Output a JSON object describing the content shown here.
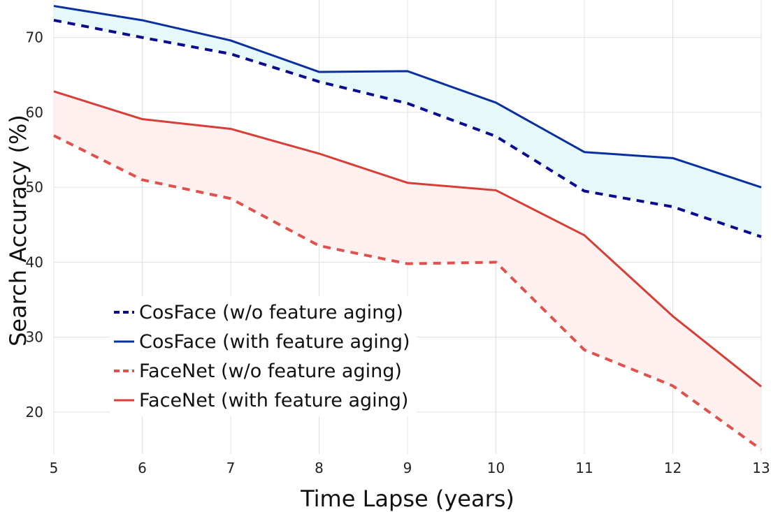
{
  "chart_data": {
    "type": "line",
    "title": "",
    "xlabel": "Time Lapse (years)",
    "ylabel": "Search Accuracy (%)",
    "x": [
      5,
      6,
      7,
      8,
      9,
      10,
      11,
      12,
      13
    ],
    "xlim": [
      5,
      13
    ],
    "ylim": [
      14.4,
      75
    ],
    "x_ticks": [
      "5",
      "6",
      "7",
      "8",
      "9",
      "10",
      "11",
      "12",
      "13"
    ],
    "y_ticks": [
      "20",
      "30",
      "40",
      "50",
      "60",
      "70"
    ],
    "grid": true,
    "legend_position": "lower-left",
    "series": [
      {
        "name": "CosFace (w/o feature aging)",
        "color": "#0b0b8f",
        "dash": "dashed",
        "values": [
          72.3,
          70.0,
          67.8,
          64.1,
          61.2,
          56.8,
          49.5,
          47.4,
          43.4
        ]
      },
      {
        "name": "CosFace (with feature aging)",
        "color": "#0a2fa0",
        "dash": "solid",
        "values": [
          74.2,
          72.3,
          69.6,
          65.4,
          65.5,
          61.3,
          54.7,
          53.9,
          50.0
        ]
      },
      {
        "name": "FaceNet (w/o feature aging)",
        "color": "#e0514d",
        "dash": "dashed",
        "values": [
          56.9,
          51.0,
          48.5,
          42.2,
          39.8,
          40.0,
          28.3,
          23.5,
          15.0
        ]
      },
      {
        "name": "FaceNet (with feature aging)",
        "color": "#d83d36",
        "dash": "solid",
        "values": [
          62.8,
          59.1,
          57.8,
          54.5,
          50.6,
          49.6,
          43.6,
          32.8,
          23.4
        ]
      }
    ],
    "fills": [
      {
        "between": [
          0,
          1
        ],
        "color": "#e4f9f8"
      },
      {
        "between": [
          2,
          3
        ],
        "color": "#fff0f0"
      }
    ]
  }
}
